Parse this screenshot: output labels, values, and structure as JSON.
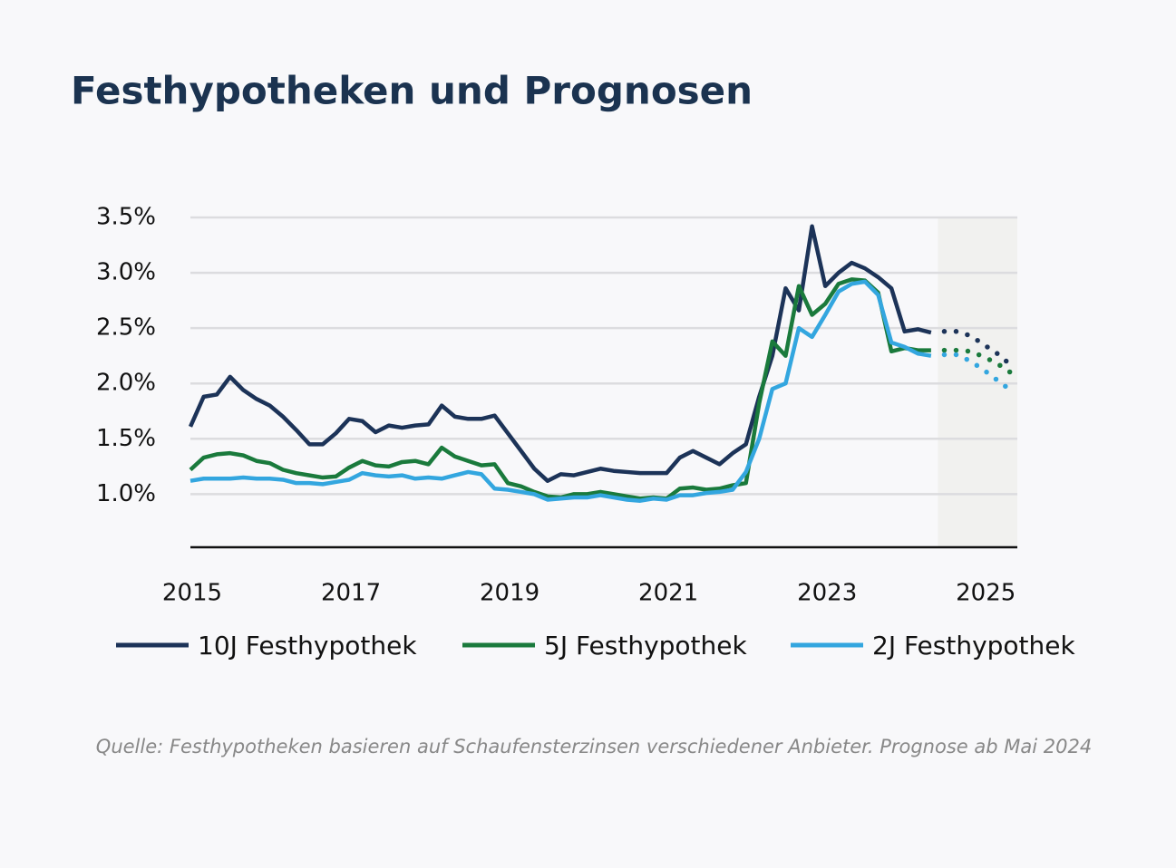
{
  "chart_data": {
    "type": "line",
    "title": "Festhypotheken und Prognosen",
    "source": "Quelle: Festhypotheken basieren auf Schaufensterzinsen verschiedener Anbieter. Prognose ab Mai 2024",
    "x": [
      2015,
      2015.167,
      2015.333,
      2015.5,
      2015.667,
      2015.833,
      2016,
      2016.167,
      2016.333,
      2016.5,
      2016.667,
      2016.833,
      2017,
      2017.167,
      2017.333,
      2017.5,
      2017.667,
      2017.833,
      2018,
      2018.167,
      2018.333,
      2018.5,
      2018.667,
      2018.833,
      2019,
      2019.167,
      2019.333,
      2019.5,
      2019.667,
      2019.833,
      2020,
      2020.167,
      2020.333,
      2020.5,
      2020.667,
      2020.833,
      2021,
      2021.167,
      2021.333,
      2021.5,
      2021.667,
      2021.833,
      2022,
      2022.167,
      2022.333,
      2022.5,
      2022.667,
      2022.833,
      2023,
      2023.167,
      2023.333,
      2023.5,
      2023.667,
      2023.833,
      2024,
      2024.167,
      2024.333,
      2024.5,
      2024.667,
      2024.833,
      2025,
      2025.167,
      2025.333
    ],
    "forecast_start": 2024.333,
    "forecast_shade_xlim": [
      2024.42,
      2025.42
    ],
    "series": [
      {
        "name": "10J Festhypothek",
        "color": "#1c3358",
        "values": [
          1.61,
          1.88,
          1.9,
          2.06,
          1.94,
          1.86,
          1.8,
          1.7,
          1.58,
          1.45,
          1.45,
          1.55,
          1.68,
          1.66,
          1.56,
          1.62,
          1.6,
          1.62,
          1.63,
          1.8,
          1.7,
          1.68,
          1.68,
          1.71,
          1.55,
          1.39,
          1.23,
          1.12,
          1.18,
          1.17,
          1.2,
          1.23,
          1.21,
          1.2,
          1.19,
          1.19,
          1.19,
          1.33,
          1.39,
          1.33,
          1.27,
          1.37,
          1.45,
          1.88,
          2.25,
          2.86,
          2.66,
          3.42,
          2.88,
          3.0,
          3.09,
          3.04,
          2.96,
          2.86,
          2.47,
          2.49,
          2.46,
          2.47,
          2.47,
          2.43,
          2.35,
          2.27,
          2.17
        ]
      },
      {
        "name": "5J Festhypothek",
        "color": "#1a7a3c",
        "values": [
          1.22,
          1.33,
          1.36,
          1.37,
          1.35,
          1.3,
          1.28,
          1.22,
          1.19,
          1.17,
          1.15,
          1.16,
          1.24,
          1.3,
          1.26,
          1.25,
          1.29,
          1.3,
          1.27,
          1.42,
          1.34,
          1.3,
          1.26,
          1.27,
          1.1,
          1.07,
          1.02,
          0.98,
          0.97,
          1.0,
          1.0,
          1.02,
          1.0,
          0.98,
          0.96,
          0.97,
          0.96,
          1.05,
          1.06,
          1.04,
          1.05,
          1.08,
          1.1,
          1.82,
          2.38,
          2.25,
          2.88,
          2.62,
          2.72,
          2.9,
          2.94,
          2.93,
          2.82,
          2.29,
          2.32,
          2.3,
          2.3,
          2.3,
          2.3,
          2.29,
          2.24,
          2.18,
          2.1
        ]
      },
      {
        "name": "2J Festhypothek",
        "color": "#33a6df",
        "values": [
          1.12,
          1.14,
          1.14,
          1.14,
          1.15,
          1.14,
          1.14,
          1.13,
          1.1,
          1.1,
          1.09,
          1.11,
          1.13,
          1.19,
          1.17,
          1.16,
          1.17,
          1.14,
          1.15,
          1.14,
          1.17,
          1.2,
          1.18,
          1.05,
          1.04,
          1.02,
          1.0,
          0.95,
          0.96,
          0.97,
          0.97,
          0.99,
          0.97,
          0.95,
          0.94,
          0.96,
          0.95,
          0.99,
          0.99,
          1.01,
          1.02,
          1.04,
          1.2,
          1.5,
          1.95,
          2.0,
          2.5,
          2.42,
          2.62,
          2.83,
          2.9,
          2.92,
          2.8,
          2.37,
          2.33,
          2.27,
          2.25,
          2.26,
          2.26,
          2.2,
          2.12,
          2.03,
          1.94
        ]
      }
    ],
    "xlim": [
      2015,
      2025.42
    ],
    "xticks": [
      2015,
      2017,
      2019,
      2021,
      2023,
      2025
    ],
    "ylim": [
      0.52,
      3.5
    ],
    "yticks": [
      {
        "value": 1.0,
        "label": "1.0%"
      },
      {
        "value": 1.5,
        "label": "1.5%"
      },
      {
        "value": 2.0,
        "label": "2.0%"
      },
      {
        "value": 2.5,
        "label": "2.5%"
      },
      {
        "value": 3.0,
        "label": "3.0%"
      },
      {
        "value": 3.5,
        "label": "3.5%"
      }
    ],
    "grid": true
  }
}
